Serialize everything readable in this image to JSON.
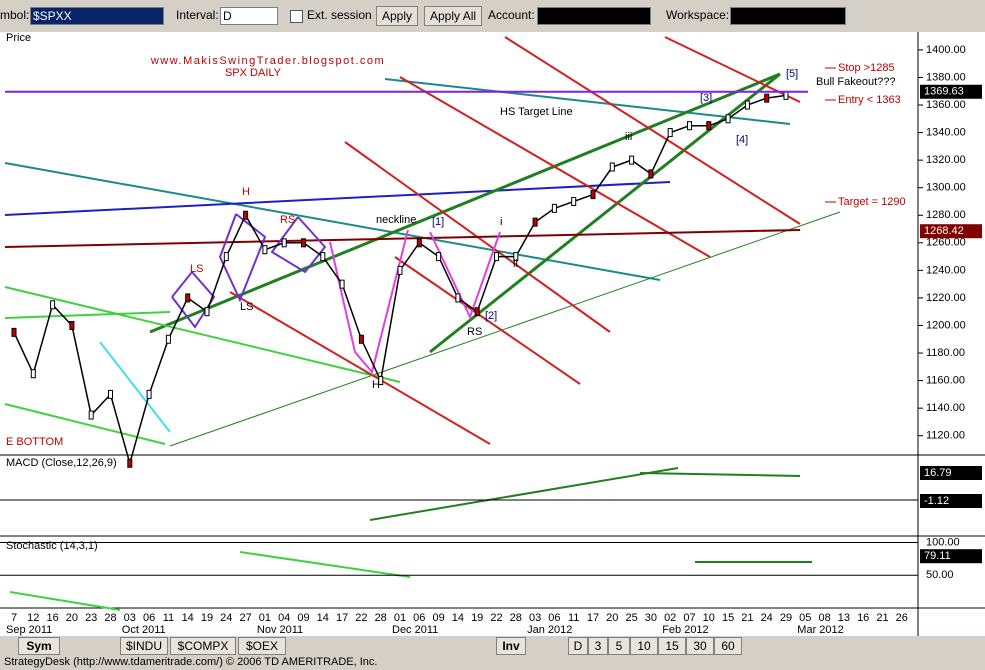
{
  "toolbar": {
    "symbol_label": "mbol:",
    "symbol": "$SPXX",
    "interval_label": "Interval:",
    "interval": "D",
    "ext_session": "Ext. session",
    "apply": "Apply",
    "apply_all": "Apply All",
    "account_label": "Account:",
    "workspace_label": "Workspace:"
  },
  "price_pane": {
    "label": "Price",
    "blog": "www.MakisSwingTrader.blogspot.com",
    "title": "SPX DAILY",
    "ylim": [
      1106,
      1413
    ],
    "yticks": [
      {
        "value": 1120,
        "label": "1120.00"
      },
      {
        "value": 1140,
        "label": "1140.00"
      },
      {
        "value": 1160,
        "label": "1160.00"
      },
      {
        "value": 1180,
        "label": "1180.00"
      },
      {
        "value": 1200,
        "label": "1200.00"
      },
      {
        "value": 1220,
        "label": "1220.00"
      },
      {
        "value": 1240,
        "label": "1240.00"
      },
      {
        "value": 1260,
        "label": "1260.00"
      },
      {
        "value": 1280,
        "label": "1280.00"
      },
      {
        "value": 1300,
        "label": "1300.00"
      },
      {
        "value": 1320,
        "label": "1320.00"
      },
      {
        "value": 1340,
        "label": "1340.00"
      },
      {
        "value": 1360,
        "label": "1360.00"
      },
      {
        "value": 1380,
        "label": "1380.00"
      },
      {
        "value": 1400,
        "label": "1400.00"
      }
    ],
    "closes": [
      1195,
      1165,
      1215,
      1200,
      1135,
      1150,
      1100,
      1150,
      1190,
      1220,
      1210,
      1250,
      1280,
      1255,
      1260,
      1260,
      1250,
      1230,
      1190,
      1160,
      1240,
      1260,
      1250,
      1220,
      1210,
      1250,
      1250,
      1275,
      1285,
      1290,
      1295,
      1315,
      1320,
      1310,
      1340,
      1345,
      1345,
      1350,
      1360,
      1365,
      1367,
      null,
      null,
      null,
      null,
      null,
      null
    ],
    "last_price": 1369.63,
    "ma_price": 1268.42,
    "annotations": [
      "HS Target Line",
      "neckline",
      "H",
      "LS",
      "RS",
      "LS",
      "H",
      "RS",
      "[1]",
      "[2]",
      "[3]",
      "[4]",
      "[5]",
      "iii",
      "i",
      "ii",
      "E BOTTOM",
      "Stop >1285",
      "Bull Fakeout???",
      "Entry < 1363",
      "Target = 1290"
    ]
  },
  "macd": {
    "title": "MACD (Close,12,26,9)",
    "last": 16.79,
    "signal": -1.12
  },
  "stochastic": {
    "title": "Stochastic (14,3,1)",
    "ylim": [
      0,
      110
    ],
    "yticks": [
      {
        "value": 100,
        "label": "100.00"
      },
      {
        "value": 50,
        "label": "50.00"
      }
    ],
    "last": 79.11
  },
  "dates": [
    "7",
    "12",
    "16",
    "20",
    "23",
    "28",
    "03",
    "06",
    "11",
    "14",
    "19",
    "24",
    "27",
    "01",
    "04",
    "09",
    "14",
    "17",
    "22",
    "28",
    "01",
    "06",
    "09",
    "14",
    "19",
    "22",
    "28",
    "03",
    "06",
    "11",
    "17",
    "20",
    "25",
    "30",
    "02",
    "07",
    "10",
    "15",
    "21",
    "24",
    "29",
    "05",
    "08",
    "13",
    "16",
    "21",
    "26"
  ],
  "months": [
    {
      "index": 0,
      "label": "Sep 2011"
    },
    {
      "index": 6,
      "label": "Oct 2011"
    },
    {
      "index": 13,
      "label": "Nov 2011"
    },
    {
      "index": 20,
      "label": "Dec 2011"
    },
    {
      "index": 27,
      "label": "Jan 2012"
    },
    {
      "index": 34,
      "label": "Feb 2012"
    },
    {
      "index": 41,
      "label": "Mar 2012"
    }
  ],
  "tabs": [
    "Sym",
    "$INDU",
    "$COMPX",
    "$OEX",
    "Inv",
    "D",
    "3",
    "5",
    "10",
    "15",
    "30",
    "60"
  ],
  "status": "StrategyDesk (http://www.tdameritrade.com/) © 2006 TD AMERITRADE, Inc."
}
